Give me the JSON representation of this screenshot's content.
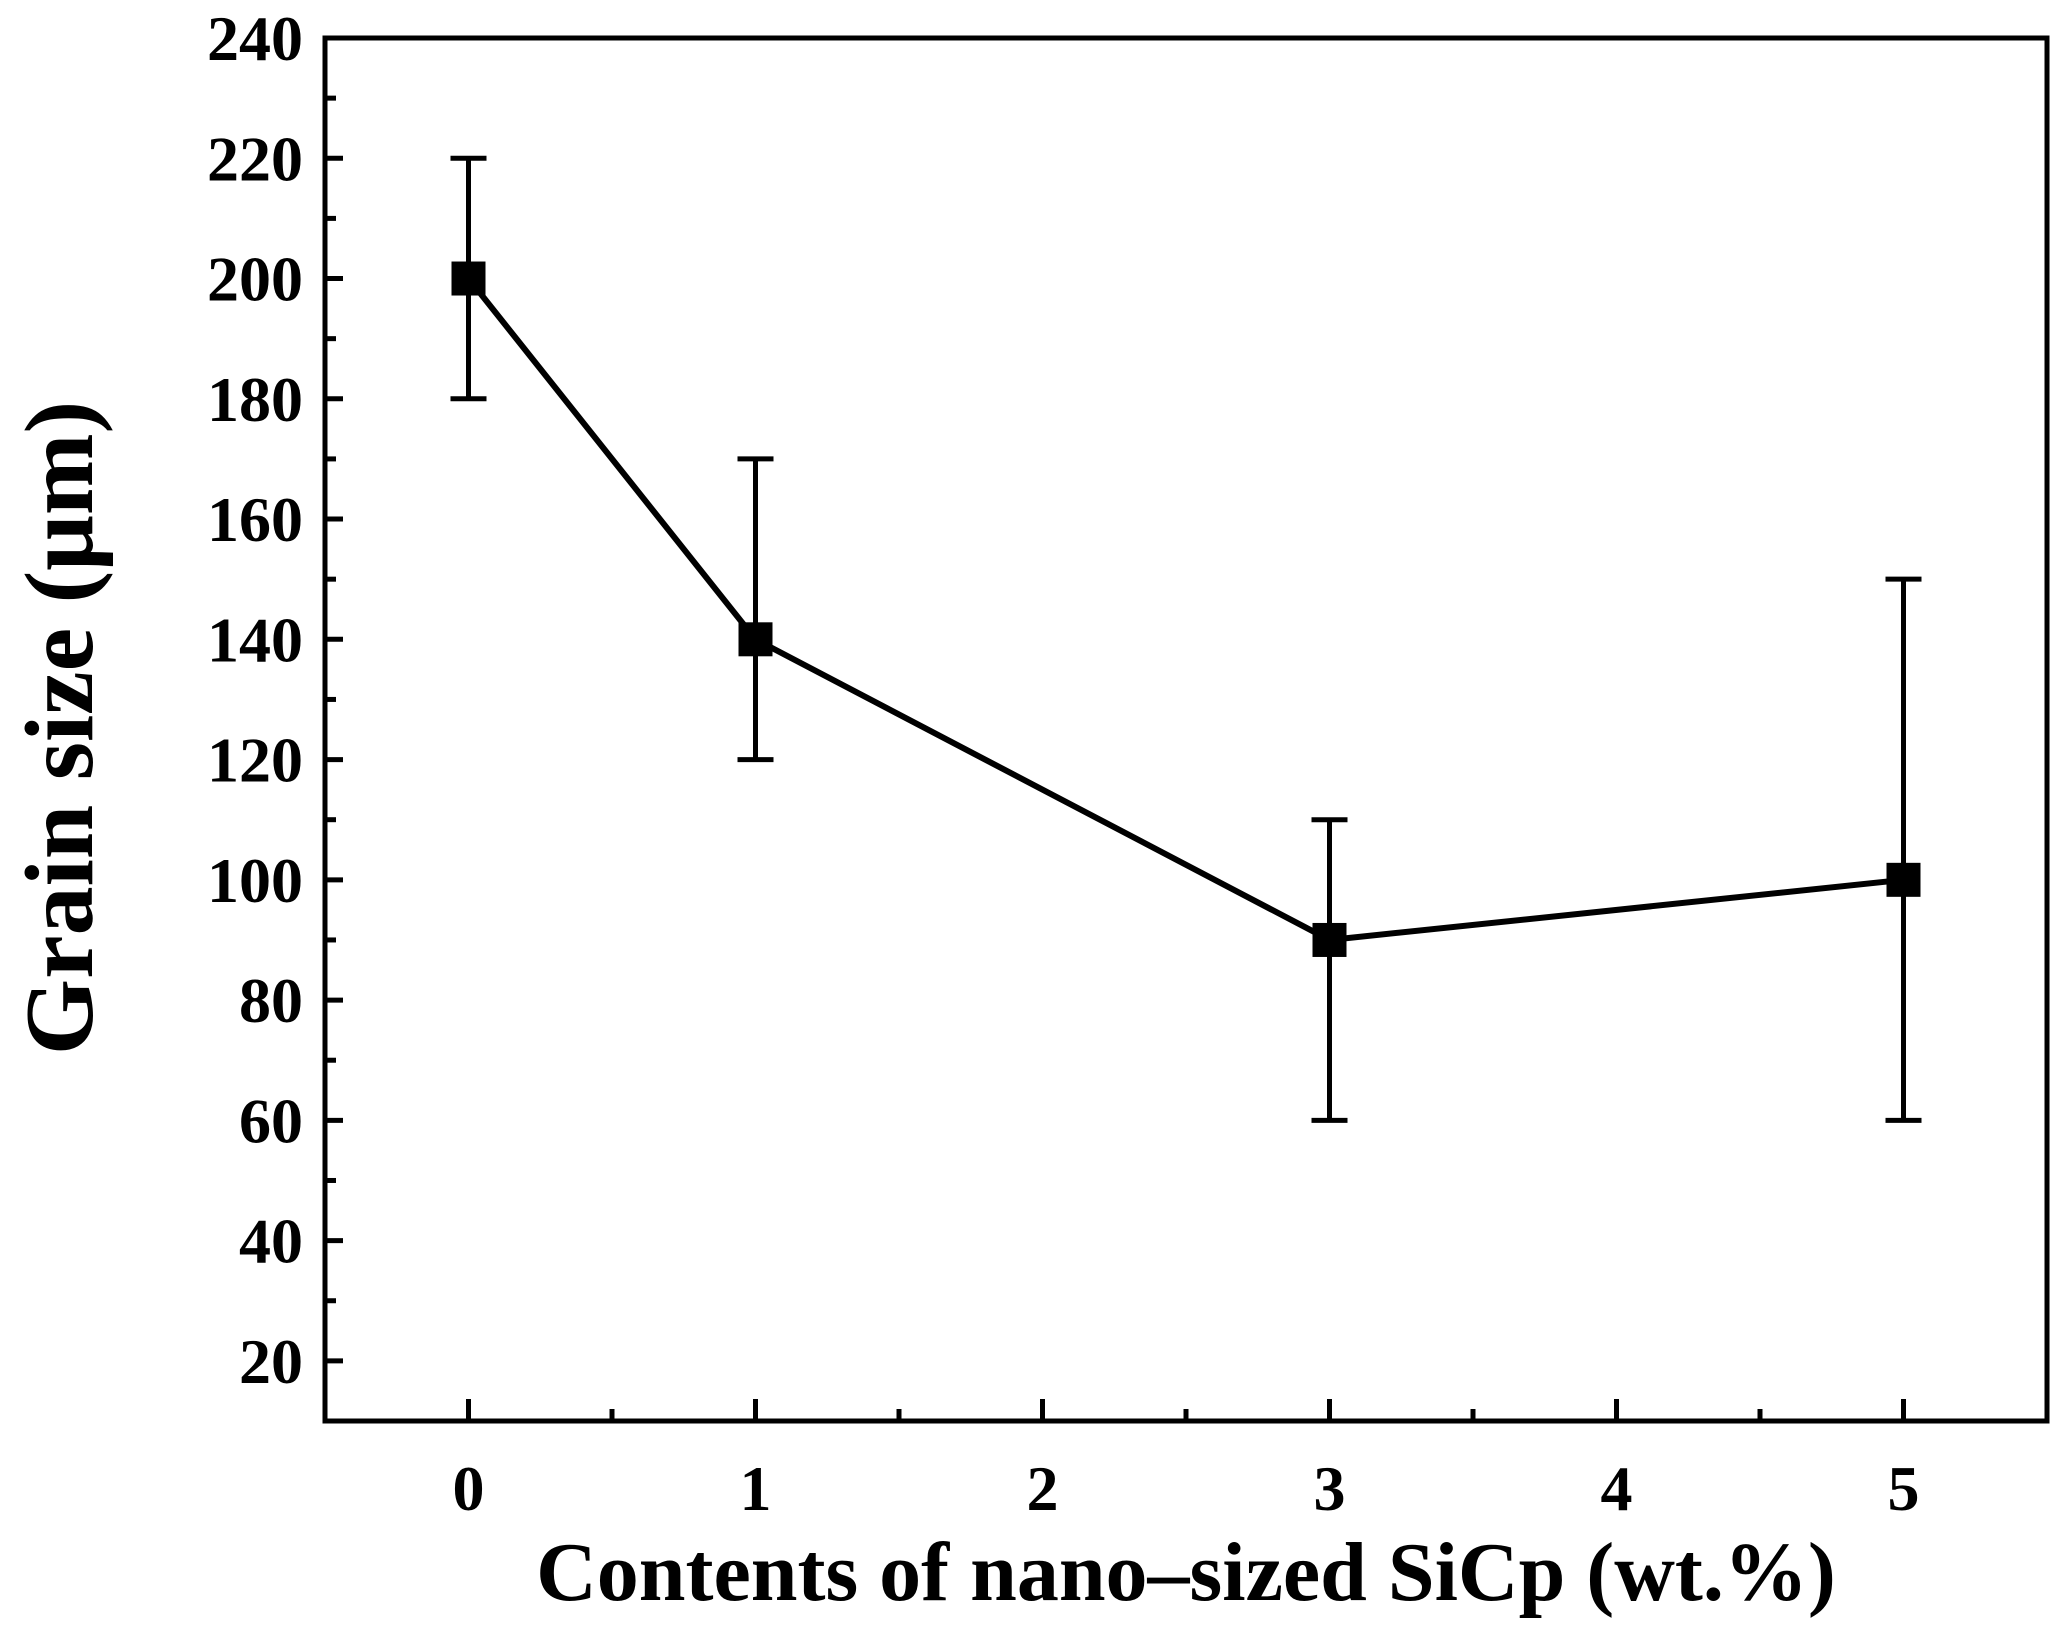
{
  "chart_data": {
    "type": "line",
    "title": "",
    "xlabel": "Contents of nano–sized SiCp (wt.%)",
    "ylabel": "Grain size (μm)",
    "xlim": [
      -0.5,
      5.5
    ],
    "ylim": [
      10,
      240
    ],
    "x_ticks": [
      0,
      1,
      2,
      3,
      4,
      5
    ],
    "x_tick_labels": [
      "0",
      "1",
      "2",
      "3",
      "4",
      "5"
    ],
    "y_ticks": [
      20,
      40,
      60,
      80,
      100,
      120,
      140,
      160,
      180,
      200,
      220,
      240
    ],
    "y_tick_labels": [
      "20",
      "40",
      "60",
      "80",
      "100",
      "120",
      "140",
      "160",
      "180",
      "200",
      "220",
      "240"
    ],
    "grid": false,
    "series": [
      {
        "name": "Grain size",
        "color": "#000000",
        "marker": "square",
        "x": [
          0,
          1,
          3,
          5
        ],
        "y": [
          200,
          140,
          90,
          100
        ],
        "error_low": [
          180,
          120,
          60,
          60
        ],
        "error_high": [
          220,
          170,
          110,
          150
        ]
      }
    ]
  }
}
